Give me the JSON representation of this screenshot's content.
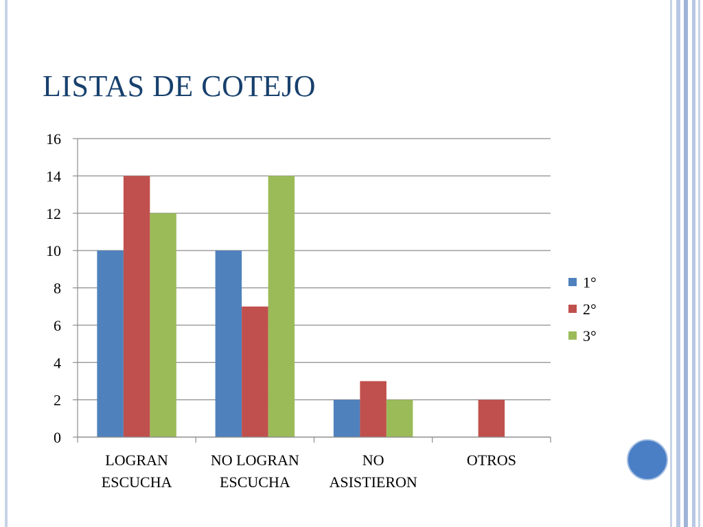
{
  "slide": {
    "title": "LISTAS DE COTEJO",
    "frame_colors": [
      "#c7d3e6",
      "#b7c8e4",
      "#9fb3d8"
    ]
  },
  "chart_data": {
    "type": "bar",
    "categories": [
      [
        "LOGRAN",
        "ESCUCHA"
      ],
      [
        "NO LOGRAN",
        "ESCUCHA"
      ],
      [
        "NO",
        "ASISTIERON"
      ],
      [
        "OTROS"
      ]
    ],
    "series": [
      {
        "name": "1°",
        "color": "#4f81bd",
        "values": [
          10,
          10,
          2,
          0
        ]
      },
      {
        "name": "2°",
        "color": "#c0504d",
        "values": [
          14,
          7,
          3,
          2
        ]
      },
      {
        "name": "3°",
        "color": "#9bbb59",
        "values": [
          12,
          14,
          2,
          0
        ]
      }
    ],
    "ylim": [
      0,
      16
    ],
    "yticks": [
      0,
      2,
      4,
      6,
      8,
      10,
      12,
      14,
      16
    ],
    "grid": true,
    "legend_position": "right"
  }
}
